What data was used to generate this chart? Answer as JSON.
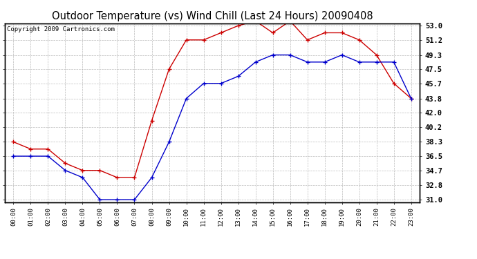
{
  "title": "Outdoor Temperature (vs) Wind Chill (Last 24 Hours) 20090408",
  "copyright": "Copyright 2009 Cartronics.com",
  "x_labels": [
    "00:00",
    "01:00",
    "02:00",
    "03:00",
    "04:00",
    "05:00",
    "06:00",
    "07:00",
    "08:00",
    "09:00",
    "10:00",
    "11:00",
    "12:00",
    "13:00",
    "14:00",
    "15:00",
    "16:00",
    "17:00",
    "18:00",
    "19:00",
    "20:00",
    "21:00",
    "22:00",
    "23:00"
  ],
  "temp_red": [
    38.3,
    37.4,
    37.4,
    35.6,
    34.7,
    34.7,
    33.8,
    33.8,
    41.0,
    47.5,
    51.2,
    51.2,
    52.1,
    53.0,
    53.6,
    52.1,
    53.6,
    51.2,
    52.1,
    52.1,
    51.2,
    49.3,
    45.7,
    43.8
  ],
  "wind_blue": [
    36.5,
    36.5,
    36.5,
    34.7,
    33.8,
    31.0,
    31.0,
    31.0,
    33.8,
    38.3,
    43.8,
    45.7,
    45.7,
    46.6,
    48.4,
    49.3,
    49.3,
    48.4,
    48.4,
    49.3,
    48.4,
    48.4,
    48.4,
    43.8
  ],
  "ylim_min": 31.0,
  "ylim_max": 53.0,
  "yticks": [
    31.0,
    32.8,
    34.7,
    36.5,
    38.3,
    40.2,
    42.0,
    43.8,
    45.7,
    47.5,
    49.3,
    51.2,
    53.0
  ],
  "ytick_labels": [
    "31.0",
    "32.8",
    "34.7",
    "36.5",
    "38.3",
    "40.2",
    "42.0",
    "43.8",
    "45.7",
    "47.5",
    "49.3",
    "51.2",
    "53.0"
  ],
  "red_color": "#cc0000",
  "blue_color": "#0000cc",
  "bg_color": "#ffffff",
  "grid_color": "#aaaaaa",
  "title_fontsize": 10.5,
  "copyright_fontsize": 6.5
}
